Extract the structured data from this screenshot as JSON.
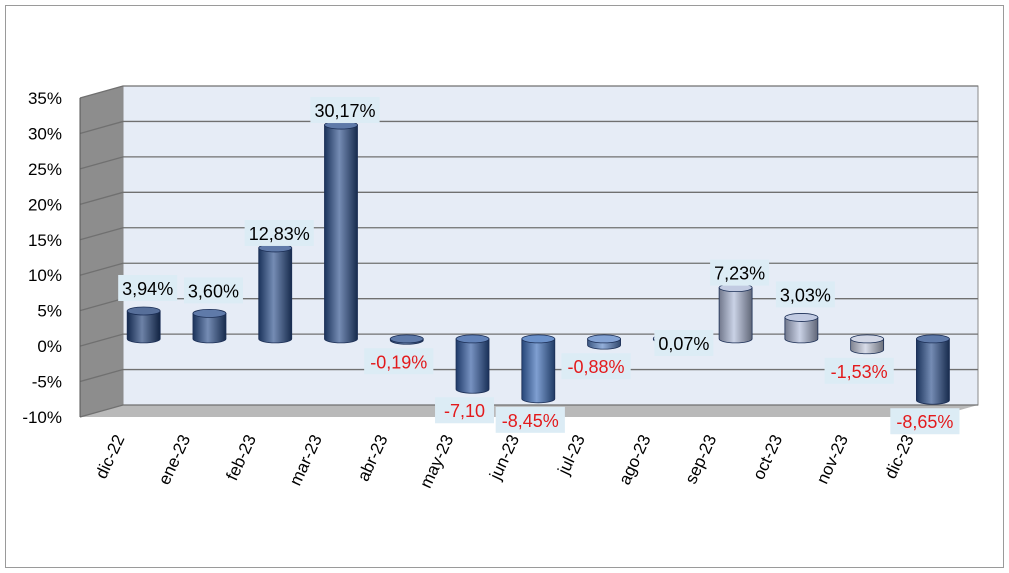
{
  "chart_data": {
    "type": "bar",
    "categories": [
      "dic-22",
      "ene-23",
      "feb-23",
      "mar-23",
      "abr-23",
      "may-23",
      "jun-23",
      "jul-23",
      "ago-23",
      "sep-23",
      "oct-23",
      "nov-23",
      "dic-23"
    ],
    "values": [
      3.94,
      3.6,
      12.83,
      30.17,
      -0.19,
      -7.1,
      -8.45,
      -0.88,
      0.07,
      7.23,
      3.03,
      -1.53,
      -8.65
    ],
    "data_labels": [
      "3,94%",
      "3,60%",
      "12,83%",
      "30,17%",
      "-0,19%",
      "-7,10",
      "-8,45%",
      "-0,88%",
      "0,07%",
      "7,23%",
      "3,03%",
      "-1,53%",
      "-8,65%"
    ],
    "yticks": [
      "35%",
      "30%",
      "25%",
      "20%",
      "15%",
      "10%",
      "5%",
      "0%",
      "-5%",
      "-10%"
    ],
    "ylim": [
      -10,
      35
    ],
    "title": "",
    "xlabel": "",
    "ylabel": "",
    "grid": true,
    "legend": "none",
    "bar_colors": [
      "#1f3f78",
      "#2a4e8c",
      "#2a4e8c",
      "#2a4e8c",
      "#2a4e8c",
      "#2e58a0",
      "#3a6cb8",
      "#5b84c6",
      "#9aabd0",
      "#aeb9d8",
      "#aeb9d8",
      "#c3c9dd",
      "#2a4e8c"
    ],
    "positive_label_color": "#000000",
    "negative_label_color": "#e31a1c",
    "label_background": "#dcecf5",
    "plot_background": "#e6ecf6",
    "wall_color": "#8d8d8d",
    "grid_color": "#707070"
  }
}
